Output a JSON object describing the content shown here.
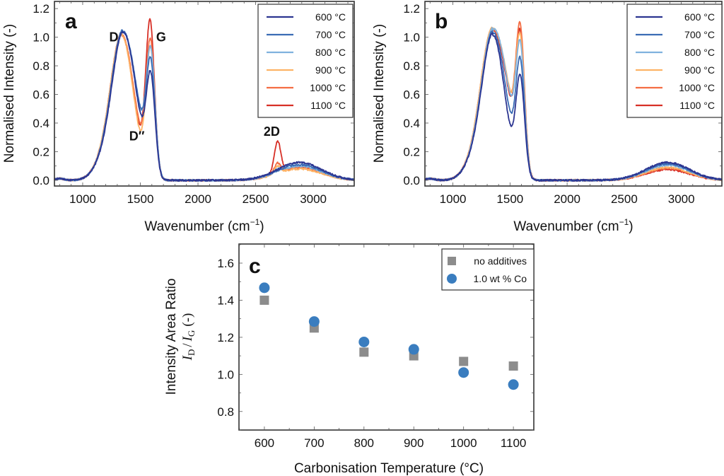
{
  "figure": {
    "panels": [
      "a",
      "b",
      "c"
    ]
  },
  "chart_data": [
    {
      "id": "a",
      "type": "line",
      "panel_label": "a",
      "xlabel": "Wavenumber (cm⁻¹)",
      "xlabel_base": "Wavenumber (cm",
      "xlabel_sup": "−1",
      "xlabel_end": ")",
      "ylabel": "Normalised Intensity (-)",
      "xlim": [
        755,
        3355
      ],
      "ylim": [
        -0.04,
        1.25
      ],
      "xticks": [
        1000,
        1500,
        2000,
        2500,
        3000
      ],
      "yticks": [
        0.0,
        0.2,
        0.4,
        0.6,
        0.8,
        1.0,
        1.2
      ],
      "ytick_labels": [
        "0.0",
        "0.2",
        "0.4",
        "0.6",
        "0.8",
        "1.0",
        "1.2"
      ],
      "grid": false,
      "legend_position": "top-right",
      "annotations": [
        {
          "text": "D",
          "x": 1270,
          "y": 0.97
        },
        {
          "text": "G",
          "x": 1680,
          "y": 0.97
        },
        {
          "text": "D′′",
          "x": 1470,
          "y": 0.28
        },
        {
          "text": "2D",
          "x": 2640,
          "y": 0.31
        }
      ],
      "series": [
        {
          "name": "600 °C",
          "color": "#2c3591",
          "D_peak": 1.0,
          "D_pos": 1350,
          "G_peak": 0.68,
          "G_pos": 1590,
          "valley": 0.55,
          "twoD_peak": 0.0,
          "hump": 0.125
        },
        {
          "name": "700 °C",
          "color": "#3b6cb5",
          "D_peak": 1.0,
          "D_pos": 1345,
          "G_peak": 0.76,
          "G_pos": 1590,
          "valley": 0.59,
          "twoD_peak": 0.0,
          "hump": 0.11
        },
        {
          "name": "800 °C",
          "color": "#7fb2de",
          "D_peak": 1.0,
          "D_pos": 1345,
          "G_peak": 0.84,
          "G_pos": 1590,
          "valley": 0.57,
          "twoD_peak": 0.02,
          "hump": 0.1
        },
        {
          "name": "900 °C",
          "color": "#fdb366",
          "D_peak": 1.0,
          "D_pos": 1340,
          "G_peak": 0.89,
          "G_pos": 1588,
          "valley": 0.4,
          "twoD_peak": 0.05,
          "hump": 0.08
        },
        {
          "name": "1000 °C",
          "color": "#f46d43",
          "D_peak": 1.0,
          "D_pos": 1340,
          "G_peak": 0.93,
          "G_pos": 1588,
          "valley": 0.45,
          "twoD_peak": 0.07,
          "hump": 0.085
        },
        {
          "name": "1100 °C",
          "color": "#d73027",
          "D_peak": 1.0,
          "D_pos": 1340,
          "G_peak": 1.07,
          "G_pos": 1585,
          "valley": 0.42,
          "twoD_peak": 0.22,
          "hump": 0.09
        }
      ]
    },
    {
      "id": "b",
      "type": "line",
      "panel_label": "b",
      "xlabel": "Wavenumber (cm⁻¹)",
      "xlabel_base": "Wavenumber (cm",
      "xlabel_sup": "−1",
      "xlabel_end": ")",
      "ylabel": "Normalised Intensity (-)",
      "xlim": [
        755,
        3355
      ],
      "ylim": [
        -0.04,
        1.25
      ],
      "xticks": [
        1000,
        1500,
        2000,
        2500,
        3000
      ],
      "yticks": [
        0.0,
        0.2,
        0.4,
        0.6,
        0.8,
        1.0,
        1.2
      ],
      "ytick_labels": [
        "0.0",
        "0.2",
        "0.4",
        "0.6",
        "0.8",
        "1.0",
        "1.2"
      ],
      "grid": false,
      "legend_position": "top-right",
      "series": [
        {
          "name": "600 °C",
          "color": "#2c3591",
          "D_peak": 1.0,
          "D_pos": 1350,
          "G_peak": 0.68,
          "G_pos": 1590,
          "valley": 0.47,
          "twoD_peak": 0.0,
          "hump": 0.125
        },
        {
          "name": "700 °C",
          "color": "#3b6cb5",
          "D_peak": 1.0,
          "D_pos": 1348,
          "G_peak": 0.77,
          "G_pos": 1590,
          "valley": 0.56,
          "twoD_peak": 0.0,
          "hump": 0.115
        },
        {
          "name": "800 °C",
          "color": "#7fb2de",
          "D_peak": 1.0,
          "D_pos": 1345,
          "G_peak": 0.85,
          "G_pos": 1590,
          "valley": 0.68,
          "twoD_peak": 0.0,
          "hump": 0.105
        },
        {
          "name": "900 °C",
          "color": "#fdb366",
          "D_peak": 1.0,
          "D_pos": 1340,
          "G_peak": 0.89,
          "G_pos": 1590,
          "valley": 0.7,
          "twoD_peak": 0.0,
          "hump": 0.09
        },
        {
          "name": "1000 °C",
          "color": "#f46d43",
          "D_peak": 1.0,
          "D_pos": 1340,
          "G_peak": 0.97,
          "G_pos": 1590,
          "valley": 0.69,
          "twoD_peak": 0.0,
          "hump": 0.085
        },
        {
          "name": "1100 °C",
          "color": "#d73027",
          "D_peak": 1.0,
          "D_pos": 1340,
          "G_peak": 0.93,
          "G_pos": 1590,
          "valley": 0.66,
          "twoD_peak": 0.0,
          "hump": 0.075
        }
      ]
    },
    {
      "id": "c",
      "type": "scatter",
      "panel_label": "c",
      "xlabel": "Carbonisation Temperature (°C)",
      "ylabel_line1": "Intensity Area Ratio",
      "ylabel_line2": "I_D / I_G (-)",
      "ylabel_I": "I",
      "ylabel_D": "D",
      "ylabel_slash": "/",
      "ylabel_G": "G",
      "ylabel_unit": "(-)",
      "xlim": [
        549,
        1141
      ],
      "ylim": [
        0.7,
        1.703
      ],
      "xticks": [
        600,
        700,
        800,
        900,
        1000,
        1100
      ],
      "xtick_labels": [
        "600",
        "700",
        "800",
        "900",
        "1000",
        "1100"
      ],
      "yticks": [
        0.8,
        1.0,
        1.2,
        1.4,
        1.6
      ],
      "ytick_labels": [
        "0.8",
        "1.0",
        "1.2",
        "1.4",
        "1.6"
      ],
      "grid": false,
      "legend_position": "top-right",
      "x": [
        600,
        700,
        800,
        900,
        1000,
        1100
      ],
      "series": [
        {
          "name": "no additives",
          "marker": "square",
          "color": "#8c8c8c",
          "values": [
            1.4,
            1.25,
            1.12,
            1.1,
            1.07,
            1.045
          ]
        },
        {
          "name": "1.0 wt % Co",
          "marker": "circle",
          "color": "#3a7dbf",
          "values": [
            1.467,
            1.285,
            1.175,
            1.135,
            1.01,
            0.945
          ]
        }
      ]
    }
  ]
}
